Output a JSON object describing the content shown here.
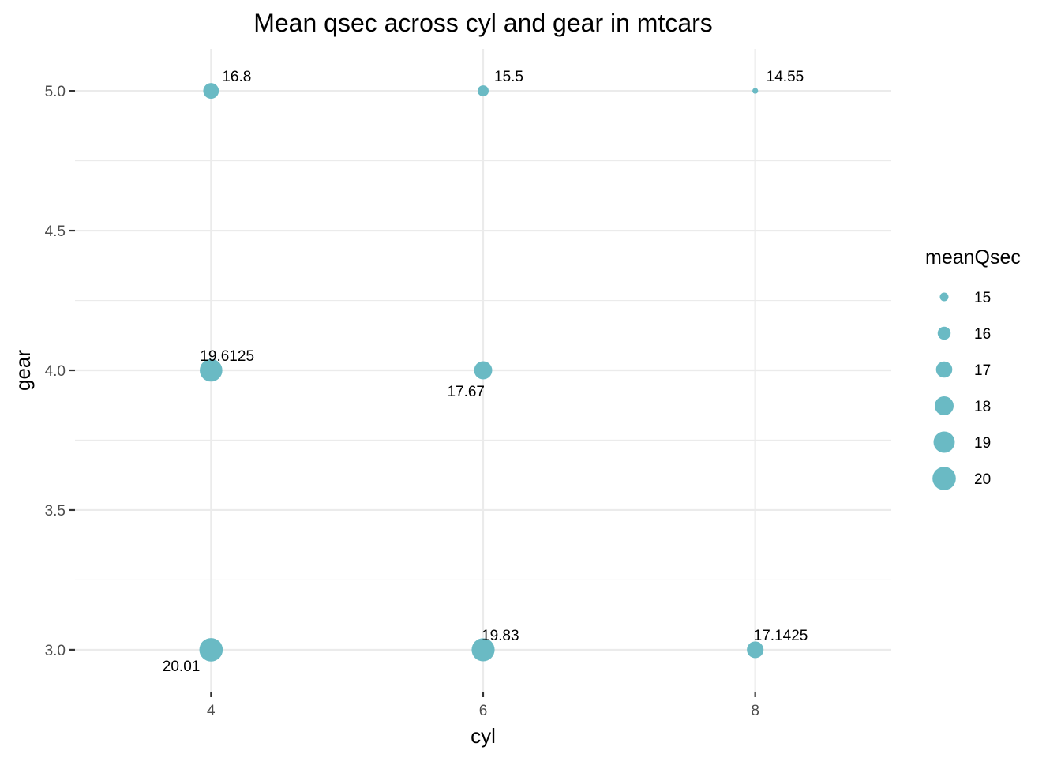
{
  "chart_data": {
    "type": "scatter",
    "title": "Mean qsec across cyl and gear in mtcars",
    "xlabel": "cyl",
    "ylabel": "gear",
    "xlim": [
      3,
      9
    ],
    "ylim": [
      2.85,
      5.15
    ],
    "x_ticks": [
      "4",
      "6",
      "8"
    ],
    "y_ticks": [
      "3.0",
      "3.5",
      "4.0",
      "4.5",
      "5.0"
    ],
    "grid": true,
    "size_variable": "meanQsec",
    "point_color": "#6abac4",
    "points": [
      {
        "cyl": 4,
        "gear": 5,
        "meanQsec": 16.8,
        "label": "16.8"
      },
      {
        "cyl": 6,
        "gear": 5,
        "meanQsec": 15.5,
        "label": "15.5"
      },
      {
        "cyl": 8,
        "gear": 5,
        "meanQsec": 14.55,
        "label": "14.55"
      },
      {
        "cyl": 4,
        "gear": 4,
        "meanQsec": 19.6125,
        "label": "19.6125"
      },
      {
        "cyl": 6,
        "gear": 4,
        "meanQsec": 17.67,
        "label": "17.67"
      },
      {
        "cyl": 4,
        "gear": 3,
        "meanQsec": 20.01,
        "label": "20.01"
      },
      {
        "cyl": 6,
        "gear": 3,
        "meanQsec": 19.83,
        "label": "19.83"
      },
      {
        "cyl": 8,
        "gear": 3,
        "meanQsec": 17.1425,
        "label": "17.1425"
      }
    ],
    "legend": {
      "title": "meanQsec",
      "position": "right",
      "entries": [
        {
          "value": 15,
          "label": "15"
        },
        {
          "value": 16,
          "label": "16"
        },
        {
          "value": 17,
          "label": "17"
        },
        {
          "value": 18,
          "label": "18"
        },
        {
          "value": 19,
          "label": "19"
        },
        {
          "value": 20,
          "label": "20"
        }
      ]
    }
  }
}
